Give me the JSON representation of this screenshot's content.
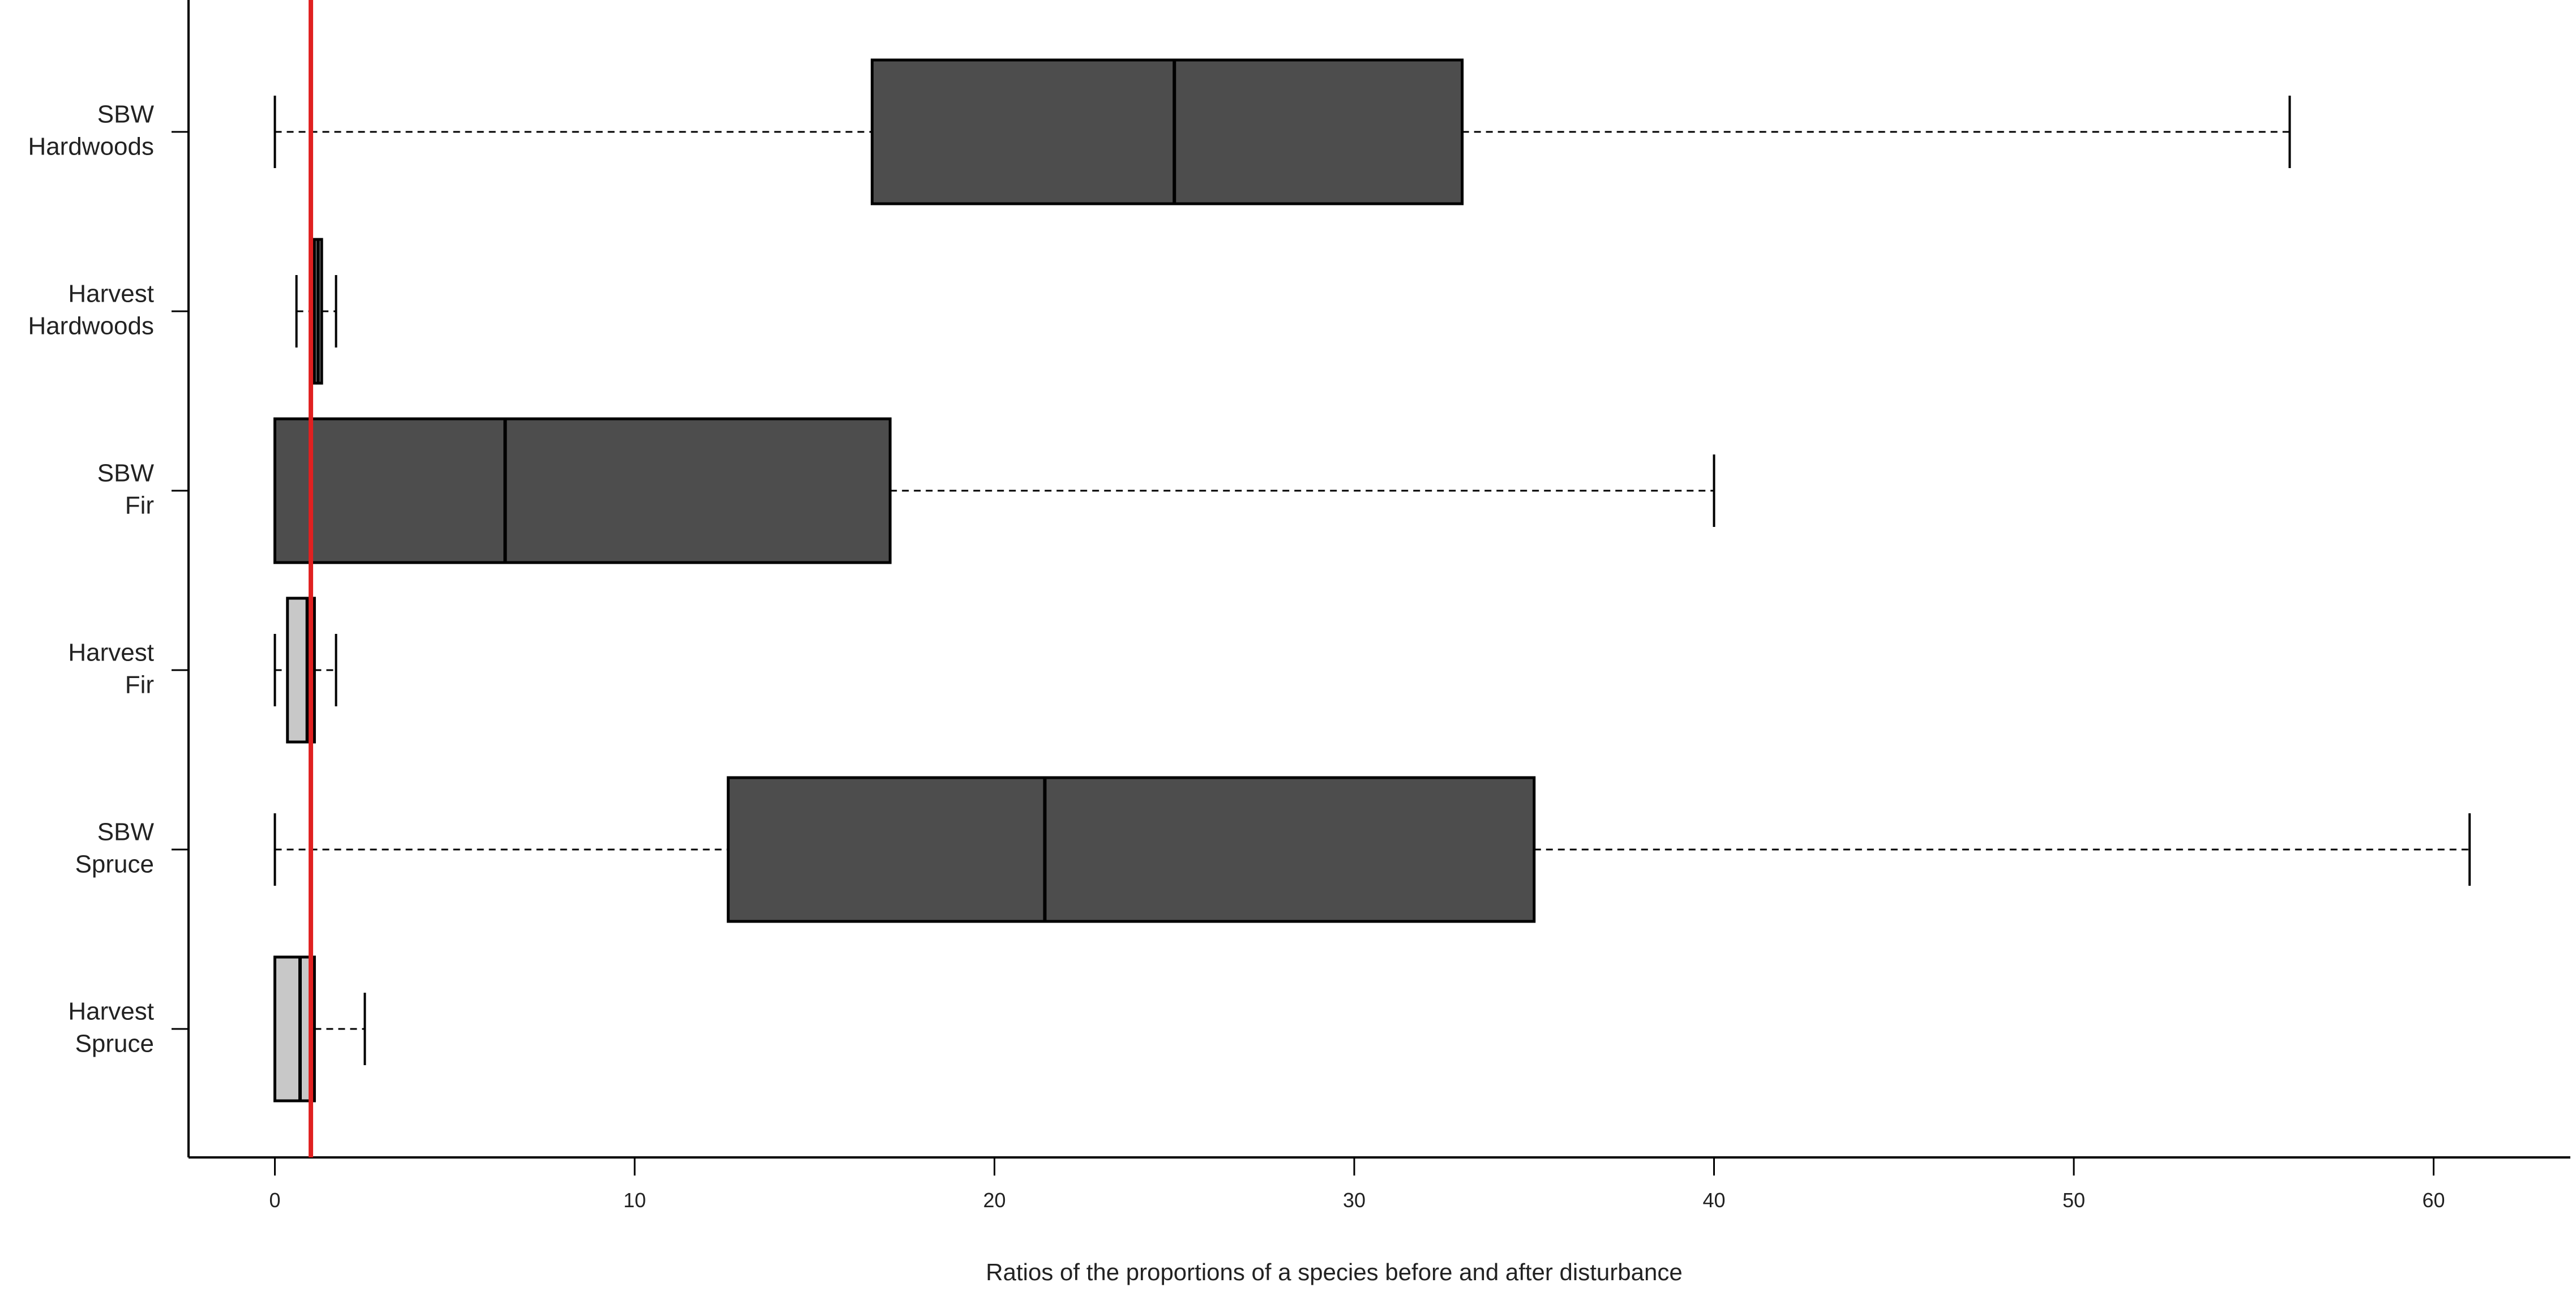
{
  "chart_data": {
    "type": "boxplot",
    "orientation": "horizontal",
    "xlabel": "Ratios of the proportions of a species before and after disturbance",
    "xlim": [
      -2.4,
      63.8
    ],
    "xticks": [
      0,
      10,
      20,
      30,
      40,
      50,
      60
    ],
    "reference_line": {
      "x": 1,
      "color": "#e02020"
    },
    "colors": {
      "sbw": "#4d4d4d",
      "harvest": "#c8c8c8"
    },
    "series": [
      {
        "label": [
          "SBW",
          "Hardwoods"
        ],
        "group": "sbw",
        "min": 0,
        "q1": 16.6,
        "median": 25,
        "q3": 33,
        "max": 56
      },
      {
        "label": [
          "Harvest",
          "Hardwoods"
        ],
        "group": "harvest",
        "min": 0.6,
        "q1": 1.1,
        "median": 1.2,
        "q3": 1.3,
        "max": 1.7
      },
      {
        "label": [
          "SBW",
          "Fir"
        ],
        "group": "sbw",
        "min": 0,
        "q1": 0,
        "median": 6.4,
        "q3": 17.1,
        "max": 40
      },
      {
        "label": [
          "Harvest",
          "Fir"
        ],
        "group": "harvest",
        "min": 0,
        "q1": 0.35,
        "median": 0.9,
        "q3": 1.1,
        "max": 1.7
      },
      {
        "label": [
          "SBW",
          "Spruce"
        ],
        "group": "sbw",
        "min": 0,
        "q1": 12.6,
        "median": 21.4,
        "q3": 35,
        "max": 61
      },
      {
        "label": [
          "Harvest",
          "Spruce"
        ],
        "group": "harvest",
        "min": 0,
        "q1": 0,
        "median": 0.7,
        "q3": 1.1,
        "max": 2.5
      }
    ]
  }
}
